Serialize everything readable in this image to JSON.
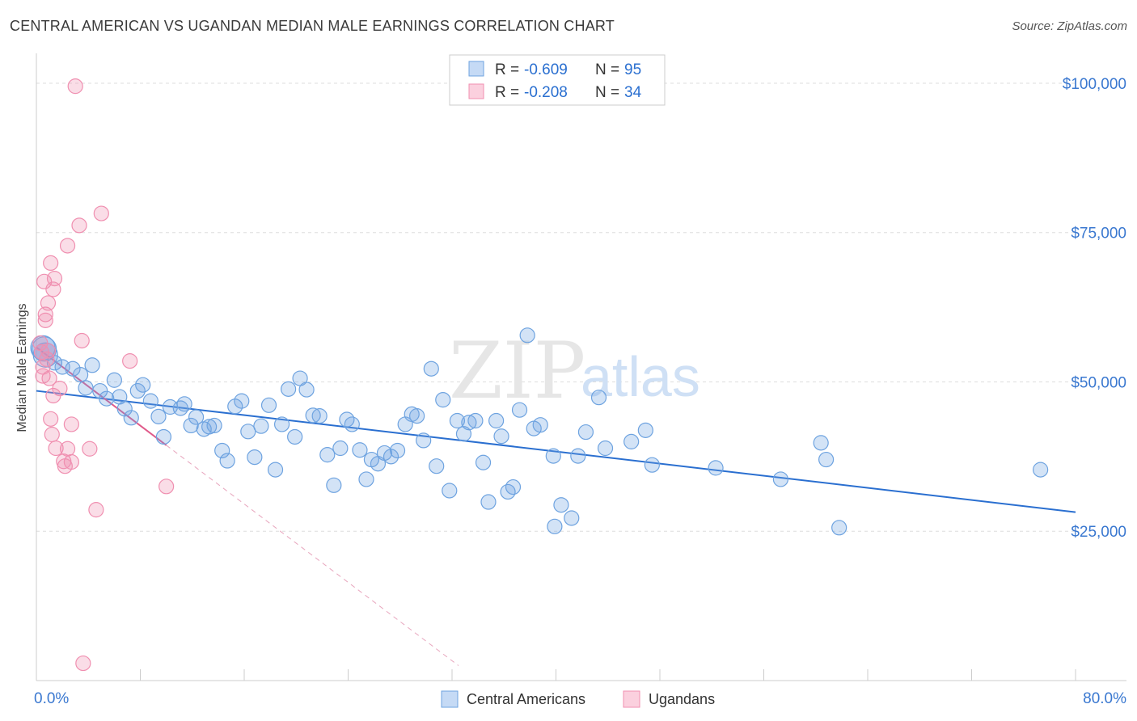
{
  "header": {
    "title": "CENTRAL AMERICAN VS UGANDAN MEDIAN MALE EARNINGS CORRELATION CHART",
    "source": "Source: ZipAtlas.com"
  },
  "watermark": {
    "zip": "ZIP",
    "atlas": "atlas"
  },
  "legend_box": {
    "rows": [
      {
        "r_label": "R =",
        "r_value": "-0.609",
        "n_label": "N =",
        "n_value": "95",
        "color": "#6ea3e0"
      },
      {
        "r_label": "R =",
        "r_value": "-0.208",
        "n_label": "N =",
        "n_value": "34",
        "color": "#f08fb0"
      }
    ]
  },
  "chart_data": {
    "type": "scatter",
    "title": "CENTRAL AMERICAN VS UGANDAN MEDIAN MALE EARNINGS CORRELATION CHART",
    "xlabel": "",
    "ylabel": "Median Male Earnings",
    "xlim": [
      0,
      80
    ],
    "ylim": [
      0,
      105000
    ],
    "x_tick_labels": [
      "0.0%",
      "80.0%"
    ],
    "y_ticks": [
      25000,
      50000,
      75000,
      100000
    ],
    "y_tick_labels": [
      "$25,000",
      "$50,000",
      "$75,000",
      "$100,000"
    ],
    "grid": true,
    "legend_position": "bottom",
    "series": [
      {
        "name": "Central Americans",
        "color": "#6ea3e0",
        "line_color": "#2a6fd0",
        "trend": {
          "x": [
            0,
            80
          ],
          "y": [
            48500,
            28200
          ]
        },
        "points": [
          [
            0.6,
            55500
          ],
          [
            0.7,
            54500
          ],
          [
            1.4,
            53200
          ],
          [
            2.0,
            52500
          ],
          [
            2.8,
            52200
          ],
          [
            3.4,
            51200
          ],
          [
            3.8,
            49000
          ],
          [
            4.3,
            52800
          ],
          [
            4.9,
            48500
          ],
          [
            5.4,
            47200
          ],
          [
            6.0,
            50300
          ],
          [
            6.4,
            47500
          ],
          [
            6.8,
            45500
          ],
          [
            7.3,
            44000
          ],
          [
            7.8,
            48500
          ],
          [
            8.2,
            49500
          ],
          [
            8.8,
            46800
          ],
          [
            9.4,
            44200
          ],
          [
            9.8,
            40800
          ],
          [
            10.3,
            45800
          ],
          [
            11.1,
            45600
          ],
          [
            11.4,
            46300
          ],
          [
            11.9,
            42700
          ],
          [
            12.3,
            44100
          ],
          [
            12.9,
            42100
          ],
          [
            13.3,
            42500
          ],
          [
            13.7,
            42700
          ],
          [
            14.3,
            38500
          ],
          [
            14.7,
            36800
          ],
          [
            15.3,
            45900
          ],
          [
            15.8,
            46800
          ],
          [
            16.3,
            41700
          ],
          [
            16.8,
            37400
          ],
          [
            17.3,
            42600
          ],
          [
            17.9,
            46100
          ],
          [
            18.4,
            35300
          ],
          [
            18.9,
            42900
          ],
          [
            19.4,
            48800
          ],
          [
            19.9,
            40800
          ],
          [
            20.3,
            50600
          ],
          [
            20.8,
            48700
          ],
          [
            21.3,
            44400
          ],
          [
            21.8,
            44300
          ],
          [
            22.4,
            37800
          ],
          [
            22.9,
            32700
          ],
          [
            23.4,
            38900
          ],
          [
            23.9,
            43700
          ],
          [
            24.3,
            42900
          ],
          [
            24.9,
            38600
          ],
          [
            25.4,
            33700
          ],
          [
            25.8,
            37000
          ],
          [
            26.3,
            36300
          ],
          [
            26.8,
            38100
          ],
          [
            27.3,
            37500
          ],
          [
            27.8,
            38500
          ],
          [
            28.4,
            42900
          ],
          [
            28.9,
            44600
          ],
          [
            29.3,
            44300
          ],
          [
            29.8,
            40200
          ],
          [
            30.4,
            52200
          ],
          [
            30.8,
            35900
          ],
          [
            31.3,
            47000
          ],
          [
            31.8,
            31800
          ],
          [
            32.4,
            43500
          ],
          [
            32.9,
            41300
          ],
          [
            33.3,
            43200
          ],
          [
            33.8,
            43500
          ],
          [
            34.4,
            36500
          ],
          [
            34.8,
            29900
          ],
          [
            35.4,
            43500
          ],
          [
            35.8,
            40900
          ],
          [
            36.3,
            31600
          ],
          [
            36.7,
            32400
          ],
          [
            37.2,
            45300
          ],
          [
            37.8,
            57800
          ],
          [
            38.3,
            42200
          ],
          [
            38.8,
            42800
          ],
          [
            39.8,
            37600
          ],
          [
            39.9,
            25800
          ],
          [
            40.4,
            29400
          ],
          [
            41.2,
            27200
          ],
          [
            41.7,
            37600
          ],
          [
            42.3,
            41600
          ],
          [
            43.3,
            47400
          ],
          [
            43.8,
            38900
          ],
          [
            45.8,
            40000
          ],
          [
            46.9,
            41900
          ],
          [
            47.4,
            36100
          ],
          [
            52.3,
            35600
          ],
          [
            57.3,
            33700
          ],
          [
            60.4,
            39800
          ],
          [
            60.8,
            37000
          ],
          [
            61.8,
            25600
          ],
          [
            77.3,
            35300
          ],
          [
            0.5,
            55700
          ]
        ]
      },
      {
        "name": "Ugandans",
        "color": "#f08fb0",
        "line_color": "#e05a8a",
        "trend": {
          "x": [
            0,
            10
          ],
          "y": [
            55800,
            39400
          ]
        },
        "trend_extension": {
          "x": [
            10,
            32.5
          ],
          "y": [
            39400,
            2500
          ]
        },
        "points": [
          [
            0.3,
            56500
          ],
          [
            0.4,
            55000
          ],
          [
            0.5,
            52500
          ],
          [
            0.5,
            51000
          ],
          [
            0.6,
            66800
          ],
          [
            0.7,
            61300
          ],
          [
            0.7,
            60300
          ],
          [
            0.8,
            53800
          ],
          [
            0.9,
            63200
          ],
          [
            1.0,
            50600
          ],
          [
            1.1,
            69900
          ],
          [
            1.1,
            43800
          ],
          [
            1.2,
            41200
          ],
          [
            1.3,
            47700
          ],
          [
            1.3,
            65500
          ],
          [
            1.4,
            67300
          ],
          [
            1.5,
            38900
          ],
          [
            1.8,
            48900
          ],
          [
            2.1,
            36700
          ],
          [
            2.2,
            35900
          ],
          [
            2.4,
            72800
          ],
          [
            2.4,
            38800
          ],
          [
            2.7,
            42900
          ],
          [
            2.7,
            36600
          ],
          [
            3.0,
            99500
          ],
          [
            3.3,
            76200
          ],
          [
            3.5,
            56900
          ],
          [
            3.6,
            2900
          ],
          [
            4.1,
            38800
          ],
          [
            4.6,
            28600
          ],
          [
            5.0,
            78200
          ],
          [
            7.2,
            53500
          ],
          [
            10.0,
            32500
          ],
          [
            0.9,
            55200
          ]
        ]
      }
    ]
  }
}
